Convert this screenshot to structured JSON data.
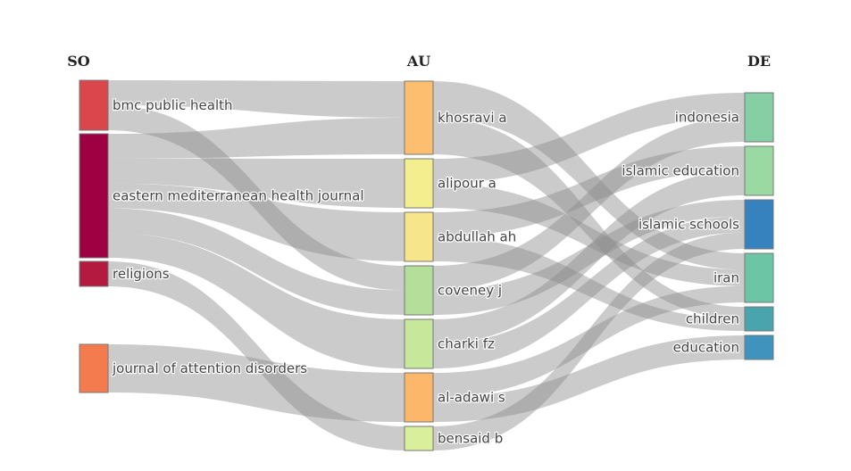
{
  "columns": [
    {
      "key": "so",
      "label": "SO"
    },
    {
      "key": "au",
      "label": "AU"
    },
    {
      "key": "de",
      "label": "DE"
    }
  ],
  "nodes": {
    "so": [
      {
        "id": "bmc",
        "label": "bmc public health",
        "color": "#d9464b"
      },
      {
        "id": "emhj",
        "label": "eastern mediterranean health journal",
        "color": "#9e0142"
      },
      {
        "id": "religions",
        "label": "religions",
        "color": "#b4193f"
      },
      {
        "id": "jad",
        "label": "journal of attention disorders",
        "color": "#f47b4d"
      }
    ],
    "au": [
      {
        "id": "khosravi",
        "label": "khosravi a",
        "color": "#fdbf6f"
      },
      {
        "id": "alipour",
        "label": "alipour a",
        "color": "#f3ef8f"
      },
      {
        "id": "abdullah",
        "label": "abdullah ah",
        "color": "#f6e58a"
      },
      {
        "id": "coveney",
        "label": "coveney j",
        "color": "#b5de9a"
      },
      {
        "id": "charki",
        "label": "charki fz",
        "color": "#c7e89b"
      },
      {
        "id": "aladawi",
        "label": "al-adawi s",
        "color": "#fdb76a"
      },
      {
        "id": "bensaid",
        "label": "bensaid b",
        "color": "#d9ef9b"
      }
    ],
    "de": [
      {
        "id": "indonesia",
        "label": "indonesia",
        "color": "#86cfa5"
      },
      {
        "id": "islamiced",
        "label": "islamic education",
        "color": "#9bd9a3"
      },
      {
        "id": "islamicschools",
        "label": "islamic schools",
        "color": "#3682bf"
      },
      {
        "id": "iran",
        "label": "iran",
        "color": "#6cc6a5"
      },
      {
        "id": "children",
        "label": "children",
        "color": "#4aa4ad"
      },
      {
        "id": "education",
        "label": "education",
        "color": "#3f93bc"
      }
    ]
  },
  "links": [
    {
      "source": "bmc",
      "target": "khosravi",
      "value": 1
    },
    {
      "source": "bmc",
      "target": "coveney",
      "value": 1
    },
    {
      "source": "emhj",
      "target": "khosravi",
      "value": 1
    },
    {
      "source": "emhj",
      "target": "alipour",
      "value": 1
    },
    {
      "source": "emhj",
      "target": "abdullah",
      "value": 1
    },
    {
      "source": "emhj",
      "target": "coveney",
      "value": 1
    },
    {
      "source": "emhj",
      "target": "charki",
      "value": 1
    },
    {
      "source": "religions",
      "target": "bensaid",
      "value": 1
    },
    {
      "source": "jad",
      "target": "aladawi",
      "value": 1
    },
    {
      "source": "khosravi",
      "target": "iran",
      "value": 1
    },
    {
      "source": "khosravi",
      "target": "children",
      "value": 1
    },
    {
      "source": "alipour",
      "target": "indonesia",
      "value": 1
    },
    {
      "source": "alipour",
      "target": "iran",
      "value": 1
    },
    {
      "source": "abdullah",
      "target": "islamiced",
      "value": 1
    },
    {
      "source": "abdullah",
      "target": "children",
      "value": 1
    },
    {
      "source": "coveney",
      "target": "indonesia",
      "value": 1
    },
    {
      "source": "coveney",
      "target": "islamicschools",
      "value": 1
    },
    {
      "source": "charki",
      "target": "islamiced",
      "value": 1
    },
    {
      "source": "charki",
      "target": "islamicschools",
      "value": 1
    },
    {
      "source": "aladawi",
      "target": "iran",
      "value": 1
    },
    {
      "source": "aladawi",
      "target": "education",
      "value": 1
    },
    {
      "source": "bensaid",
      "target": "islamicschools",
      "value": 1
    }
  ]
}
